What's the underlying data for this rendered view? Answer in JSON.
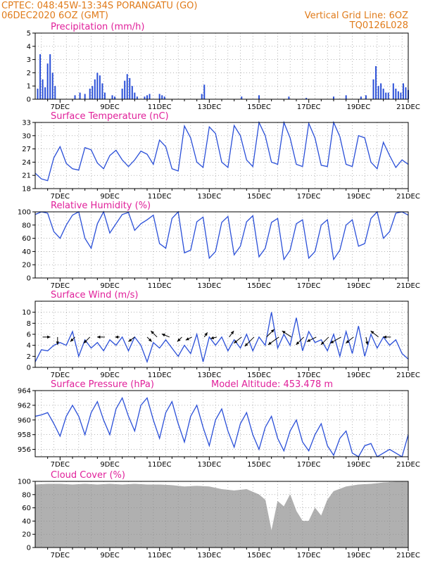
{
  "header": {
    "line1": "CPTEC:   048:45W-13:34S   PORANGATU (GO)",
    "line2": "06DEC2020 6OZ (GMT)",
    "right1": "Vertical Grid Line: 6OZ",
    "right2": "TQ0126L028"
  },
  "colors": {
    "header": "#e07b1a",
    "panel_title": "#e0209a",
    "line": "#2a4fd8",
    "bar": "#2a4fd8",
    "cloud": "#b0b0b0",
    "arrow": "#000000",
    "grid": "#888888"
  },
  "x_tick_labels": [
    "7DEC",
    "9DEC",
    "11DEC",
    "13DEC",
    "15DEC",
    "17DEC",
    "19DEC",
    "21DEC"
  ],
  "chart_data": [
    {
      "type": "bar",
      "title": "Precipitation (mm/h)",
      "x_range_days": [
        6.0,
        21.0
      ],
      "ylim": [
        0,
        5
      ],
      "yticks": [
        0,
        1,
        2,
        3,
        4,
        5
      ],
      "series": [
        {
          "x": [
            6.1,
            6.2,
            6.3,
            6.4,
            6.5,
            6.6,
            6.7,
            6.8,
            7.6,
            7.8,
            8.0,
            8.2,
            8.3,
            8.4,
            8.5,
            8.6,
            8.7,
            8.8,
            9.1,
            9.2,
            9.5,
            9.6,
            9.7,
            9.8,
            9.9,
            10.0,
            10.1,
            10.4,
            10.5,
            10.6,
            11.0,
            11.1,
            11.2,
            12.7,
            12.8,
            14.3,
            15.0,
            16.2,
            16.9,
            18.0,
            18.5,
            19.1,
            19.3,
            19.6,
            19.7,
            19.8,
            19.9,
            20.0,
            20.1,
            20.2,
            20.4,
            20.5,
            20.6,
            20.7,
            20.8,
            20.9,
            21.0
          ],
          "values": [
            0.8,
            3.4,
            1.5,
            0.9,
            2.7,
            3.4,
            2.0,
            1.0,
            0.3,
            0.5,
            0.4,
            0.8,
            1.0,
            1.5,
            2.0,
            1.8,
            1.2,
            0.5,
            0.3,
            0.2,
            0.8,
            1.4,
            1.9,
            1.6,
            1.0,
            0.5,
            0.2,
            0.2,
            0.3,
            0.4,
            0.4,
            0.3,
            0.2,
            0.4,
            1.1,
            0.2,
            0.3,
            0.2,
            0.1,
            0.2,
            0.3,
            0.2,
            0.3,
            1.5,
            2.5,
            1.0,
            1.2,
            0.8,
            0.5,
            0.5,
            1.2,
            0.8,
            0.6,
            0.5,
            1.2,
            0.9,
            0.7
          ]
        }
      ]
    },
    {
      "type": "line",
      "title": "Surface Temperature (nC)",
      "x_range_days": [
        6.0,
        21.0
      ],
      "ylim": [
        18,
        33
      ],
      "yticks": [
        18,
        21,
        24,
        27,
        30,
        33
      ],
      "series": [
        {
          "x": [
            6.0,
            6.25,
            6.5,
            6.75,
            7.0,
            7.25,
            7.5,
            7.75,
            8.0,
            8.25,
            8.5,
            8.75,
            9.0,
            9.25,
            9.5,
            9.75,
            10.0,
            10.25,
            10.5,
            10.75,
            11.0,
            11.25,
            11.5,
            11.75,
            12.0,
            12.25,
            12.5,
            12.75,
            13.0,
            13.25,
            13.5,
            13.75,
            14.0,
            14.25,
            14.5,
            14.75,
            15.0,
            15.25,
            15.5,
            15.75,
            16.0,
            16.25,
            16.5,
            16.75,
            17.0,
            17.25,
            17.5,
            17.75,
            18.0,
            18.25,
            18.5,
            18.75,
            19.0,
            19.25,
            19.5,
            19.75,
            20.0,
            20.25,
            20.5,
            20.75,
            21.0
          ],
          "values": [
            21.5,
            20.2,
            19.8,
            25.0,
            27.5,
            23.7,
            22.5,
            22.2,
            27.3,
            26.8,
            23.8,
            22.5,
            25.5,
            26.7,
            24.5,
            23.0,
            24.5,
            26.5,
            25.8,
            23.5,
            29.0,
            27.5,
            22.5,
            22.0,
            32.2,
            29.5,
            24.0,
            22.8,
            32.0,
            30.5,
            24.0,
            22.8,
            32.3,
            30.0,
            24.5,
            23.0,
            33.0,
            30.0,
            24.0,
            23.5,
            33.0,
            29.5,
            23.5,
            23.0,
            32.8,
            29.5,
            23.3,
            23.0,
            33.0,
            29.8,
            23.5,
            23.0,
            30.0,
            29.5,
            24.0,
            22.5,
            28.5,
            25.5,
            22.8,
            24.5,
            23.5
          ]
        }
      ]
    },
    {
      "type": "line",
      "title": "Relative Humidity (%)",
      "x_range_days": [
        6.0,
        21.0
      ],
      "ylim": [
        0,
        100
      ],
      "yticks": [
        0,
        20,
        40,
        60,
        80,
        100
      ],
      "series": [
        {
          "x": [
            6.0,
            6.25,
            6.5,
            6.75,
            7.0,
            7.25,
            7.5,
            7.75,
            8.0,
            8.25,
            8.5,
            8.75,
            9.0,
            9.25,
            9.5,
            9.75,
            10.0,
            10.25,
            10.5,
            10.75,
            11.0,
            11.25,
            11.5,
            11.75,
            12.0,
            12.25,
            12.5,
            12.75,
            13.0,
            13.25,
            13.5,
            13.75,
            14.0,
            14.25,
            14.5,
            14.75,
            15.0,
            15.25,
            15.5,
            15.75,
            16.0,
            16.25,
            16.5,
            16.75,
            17.0,
            17.25,
            17.5,
            17.75,
            18.0,
            18.25,
            18.5,
            18.75,
            19.0,
            19.25,
            19.5,
            19.75,
            20.0,
            20.25,
            20.5,
            20.75,
            21.0
          ],
          "values": [
            96,
            100,
            98,
            70,
            60,
            80,
            95,
            100,
            60,
            45,
            82,
            100,
            68,
            82,
            96,
            99,
            72,
            82,
            88,
            95,
            52,
            45,
            90,
            100,
            38,
            42,
            85,
            92,
            30,
            40,
            84,
            93,
            35,
            48,
            85,
            94,
            32,
            45,
            84,
            90,
            28,
            42,
            82,
            88,
            30,
            40,
            80,
            88,
            28,
            42,
            80,
            88,
            48,
            52,
            90,
            100,
            60,
            70,
            98,
            100,
            95
          ]
        }
      ]
    },
    {
      "type": "line",
      "title": "Surface Wind (m/s)",
      "x_range_days": [
        6.0,
        21.0
      ],
      "ylim": [
        0,
        12
      ],
      "yticks": [
        0,
        2,
        4,
        6,
        8,
        10
      ],
      "series": [
        {
          "x": [
            6.0,
            6.25,
            6.5,
            6.75,
            7.0,
            7.25,
            7.5,
            7.75,
            8.0,
            8.25,
            8.5,
            8.75,
            9.0,
            9.25,
            9.5,
            9.75,
            10.0,
            10.25,
            10.5,
            10.75,
            11.0,
            11.25,
            11.5,
            11.75,
            12.0,
            12.25,
            12.5,
            12.75,
            13.0,
            13.25,
            13.5,
            13.75,
            14.0,
            14.25,
            14.5,
            14.75,
            15.0,
            15.25,
            15.5,
            15.75,
            16.0,
            16.25,
            16.5,
            16.75,
            17.0,
            17.25,
            17.5,
            17.75,
            18.0,
            18.25,
            18.5,
            18.75,
            19.0,
            19.25,
            19.5,
            19.75,
            20.0,
            20.25,
            20.5,
            20.75,
            21.0
          ],
          "values": [
            1.0,
            3.2,
            3.0,
            4.0,
            4.5,
            4.0,
            6.5,
            2.0,
            5.0,
            3.5,
            4.5,
            3.0,
            5.0,
            4.0,
            5.5,
            3.0,
            5.5,
            4.0,
            1.0,
            4.5,
            3.5,
            5.0,
            3.5,
            2.0,
            4.0,
            2.5,
            6.0,
            1.0,
            5.5,
            4.0,
            5.5,
            3.0,
            5.0,
            3.5,
            6.0,
            3.0,
            5.5,
            4.0,
            10.0,
            3.5,
            6.0,
            4.0,
            9.0,
            3.0,
            6.5,
            4.5,
            5.0,
            3.0,
            6.0,
            2.0,
            6.5,
            2.5,
            7.5,
            2.0,
            6.0,
            3.5,
            5.5,
            4.0,
            5.0,
            2.5,
            1.5
          ]
        }
      ],
      "arrows": {
        "x": [
          6.3,
          6.9,
          7.6,
          8.2,
          8.8,
          9.4,
          10.0,
          10.5,
          10.9,
          11.4,
          11.9,
          12.3,
          12.8,
          13.3,
          13.8,
          14.3,
          14.8,
          15.3,
          15.8,
          16.3,
          16.8,
          17.3,
          17.8,
          18.3,
          18.8,
          19.3,
          19.8,
          20.3
        ],
        "u": [
          0.5,
          0.0,
          -0.3,
          -0.4,
          -0.5,
          -0.3,
          -0.4,
          0.3,
          -0.4,
          -0.5,
          -0.3,
          -0.4,
          0.2,
          -0.4,
          0.3,
          -0.5,
          -0.6,
          0.5,
          -0.7,
          -0.6,
          -0.5,
          -0.6,
          -0.5,
          -0.7,
          -0.5,
          0.1,
          -0.5,
          -0.5
        ],
        "v": [
          0.0,
          -0.5,
          -0.3,
          -0.4,
          0.0,
          0.0,
          -0.3,
          -0.3,
          0.4,
          0.2,
          -0.3,
          -0.2,
          0.3,
          -0.1,
          0.4,
          -0.4,
          -0.6,
          0.5,
          -0.5,
          0.4,
          -0.5,
          -0.3,
          -0.5,
          -0.4,
          -0.4,
          -0.5,
          0.4,
          0.0
        ]
      }
    },
    {
      "type": "line",
      "title": "Surface Pressure (hPa)",
      "annotation": "Model Altitude: 453.478 m",
      "x_range_days": [
        6.0,
        21.0
      ],
      "ylim": [
        955,
        964
      ],
      "yticks": [
        956,
        958,
        960,
        962,
        964
      ],
      "series": [
        {
          "x": [
            6.0,
            6.25,
            6.5,
            6.75,
            7.0,
            7.25,
            7.5,
            7.75,
            8.0,
            8.25,
            8.5,
            8.75,
            9.0,
            9.25,
            9.5,
            9.75,
            10.0,
            10.25,
            10.5,
            10.75,
            11.0,
            11.25,
            11.5,
            11.75,
            12.0,
            12.25,
            12.5,
            12.75,
            13.0,
            13.25,
            13.5,
            13.75,
            14.0,
            14.25,
            14.5,
            14.75,
            15.0,
            15.25,
            15.5,
            15.75,
            16.0,
            16.25,
            16.5,
            16.75,
            17.0,
            17.25,
            17.5,
            17.75,
            18.0,
            18.25,
            18.5,
            18.75,
            19.0,
            19.25,
            19.5,
            19.75,
            20.0,
            20.25,
            20.5,
            20.75,
            21.0
          ],
          "values": [
            960.5,
            960.7,
            961.0,
            959.5,
            957.8,
            960.5,
            962.0,
            960.5,
            958.0,
            961.0,
            962.5,
            960.0,
            958.0,
            961.5,
            963.0,
            960.5,
            958.5,
            962.0,
            963.0,
            960.0,
            957.5,
            961.0,
            962.5,
            959.5,
            957.0,
            960.5,
            962.0,
            959.0,
            956.5,
            960.0,
            961.5,
            958.5,
            956.3,
            959.5,
            961.0,
            958.0,
            956.0,
            959.0,
            960.5,
            957.5,
            955.8,
            958.5,
            960.0,
            957.0,
            955.8,
            958.0,
            959.5,
            956.5,
            955.2,
            957.5,
            958.5,
            955.5,
            955.0,
            956.5,
            956.8,
            955.0,
            955.5,
            956.0,
            955.5,
            955.0,
            958.0
          ]
        }
      ]
    },
    {
      "type": "area",
      "title": "Cloud Cover (%)",
      "x_range_days": [
        6.0,
        21.0
      ],
      "ylim": [
        0,
        100
      ],
      "yticks": [
        0,
        20,
        40,
        60,
        80,
        100
      ],
      "series": [
        {
          "x": [
            6.0,
            6.5,
            7.0,
            7.5,
            8.0,
            8.5,
            9.0,
            9.5,
            10.0,
            10.5,
            11.0,
            11.5,
            12.0,
            12.5,
            13.0,
            13.5,
            14.0,
            14.5,
            15.0,
            15.25,
            15.5,
            15.75,
            16.0,
            16.25,
            16.5,
            16.75,
            17.0,
            17.25,
            17.5,
            17.75,
            18.0,
            18.5,
            19.0,
            19.5,
            20.0,
            20.5,
            21.0
          ],
          "values": [
            95,
            96,
            96,
            95,
            96,
            95,
            96,
            95,
            96,
            95,
            95,
            94,
            92,
            93,
            92,
            88,
            86,
            88,
            80,
            72,
            25,
            70,
            62,
            80,
            55,
            40,
            40,
            60,
            48,
            72,
            85,
            92,
            95,
            96,
            98,
            99,
            99
          ]
        }
      ]
    }
  ]
}
